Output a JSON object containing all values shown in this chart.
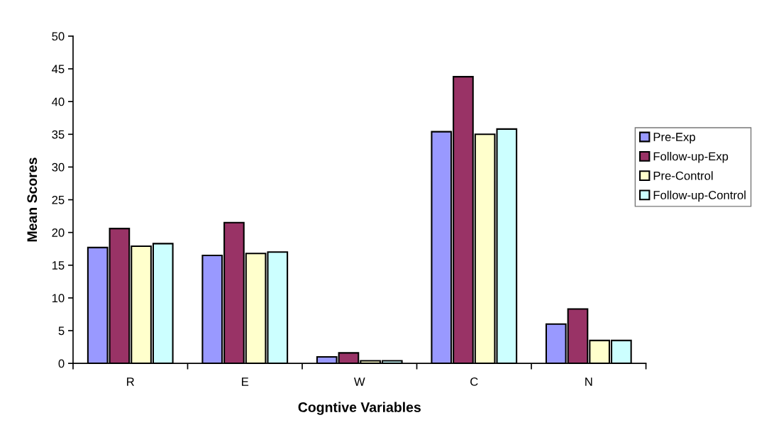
{
  "chart_data": {
    "type": "bar",
    "xlabel": "Cogntive Variables",
    "ylabel": "Mean Scores",
    "categories": [
      "R",
      "E",
      "W",
      "C",
      "N"
    ],
    "series": [
      {
        "name": "Pre-Exp",
        "color": "#9999ff",
        "values": [
          17.7,
          16.5,
          1.0,
          35.4,
          6.0
        ]
      },
      {
        "name": "Follow-up-Exp",
        "color": "#993366",
        "values": [
          20.6,
          21.5,
          1.6,
          43.8,
          8.3
        ]
      },
      {
        "name": "Pre-Control",
        "color": "#ffffcc",
        "values": [
          17.9,
          16.8,
          0.4,
          35.0,
          3.5
        ]
      },
      {
        "name": "Follow-up-Control",
        "color": "#ccffff",
        "values": [
          18.3,
          17.0,
          0.4,
          35.8,
          3.5
        ]
      }
    ],
    "ylim": [
      0,
      50
    ],
    "yticks": [
      0,
      5,
      10,
      15,
      20,
      25,
      30,
      35,
      40,
      45,
      50
    ],
    "grid": false,
    "legend": "right"
  }
}
